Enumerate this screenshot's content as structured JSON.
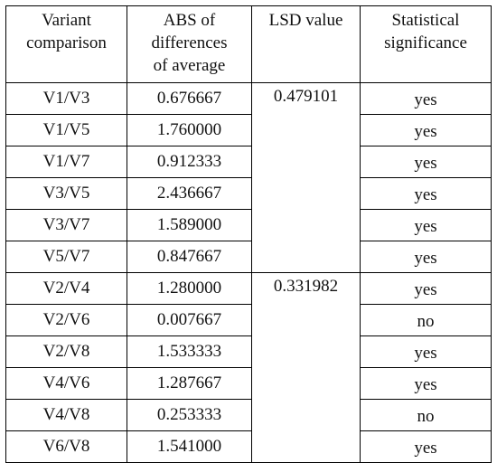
{
  "headers": {
    "variant": [
      "Variant",
      "comparison"
    ],
    "abs": [
      "ABS of",
      "differences",
      "of average"
    ],
    "lsd": [
      "LSD value"
    ],
    "significance": [
      "Statistical",
      "significance"
    ]
  },
  "groups": [
    {
      "lsd_value": "0.479101",
      "rows": [
        {
          "pair": "V1/V3",
          "abs": "0.676667",
          "sig": "yes"
        },
        {
          "pair": "V1/V5",
          "abs": "1.760000",
          "sig": "yes"
        },
        {
          "pair": "V1/V7",
          "abs": "0.912333",
          "sig": "yes"
        },
        {
          "pair": "V3/V5",
          "abs": "2.436667",
          "sig": "yes"
        },
        {
          "pair": "V3/V7",
          "abs": "1.589000",
          "sig": "yes"
        },
        {
          "pair": "V5/V7",
          "abs": "0.847667",
          "sig": "yes"
        }
      ]
    },
    {
      "lsd_value": "0.331982",
      "rows": [
        {
          "pair": "V2/V4",
          "abs": "1.280000",
          "sig": "yes"
        },
        {
          "pair": "V2/V6",
          "abs": "0.007667",
          "sig": "no"
        },
        {
          "pair": "V2/V8",
          "abs": "1.533333",
          "sig": "yes"
        },
        {
          "pair": "V4/V6",
          "abs": "1.287667",
          "sig": "yes"
        },
        {
          "pair": "V4/V8",
          "abs": "0.253333",
          "sig": "no"
        },
        {
          "pair": "V6/V8",
          "abs": "1.541000",
          "sig": "yes"
        }
      ]
    }
  ]
}
